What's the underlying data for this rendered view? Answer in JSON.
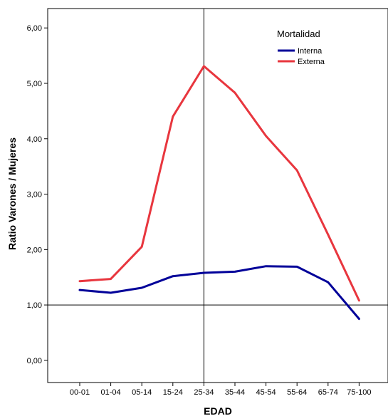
{
  "chart_data": {
    "type": "line",
    "xlabel": "EDAD",
    "ylabel": "Ratio Varones / Mujeres",
    "categories": [
      "00-01",
      "01-04",
      "05-14",
      "15-24",
      "25-34",
      "35-44",
      "45-54",
      "55-64",
      "65-74",
      "75-100"
    ],
    "ylim": [
      -0.4,
      6.35
    ],
    "y_ticks": [
      0,
      1,
      2,
      3,
      4,
      5,
      6
    ],
    "y_tick_labels": [
      "0,00",
      "1,00",
      "2,00",
      "3,00",
      "4,00",
      "5,00",
      "6,00"
    ],
    "reference_lines": {
      "y": 1.0,
      "x_category": "25-34"
    },
    "grid": false,
    "legend": {
      "title": "Mortalidad",
      "position": "top-right"
    },
    "series": [
      {
        "name": "Interna",
        "color": "#000099",
        "values": [
          1.27,
          1.22,
          1.31,
          1.52,
          1.58,
          1.6,
          1.7,
          1.69,
          1.41,
          0.75
        ]
      },
      {
        "name": "Externa",
        "color": "#e8363e",
        "values": [
          1.43,
          1.47,
          2.05,
          4.4,
          5.31,
          4.83,
          4.05,
          3.43,
          2.27,
          1.08
        ]
      }
    ]
  }
}
